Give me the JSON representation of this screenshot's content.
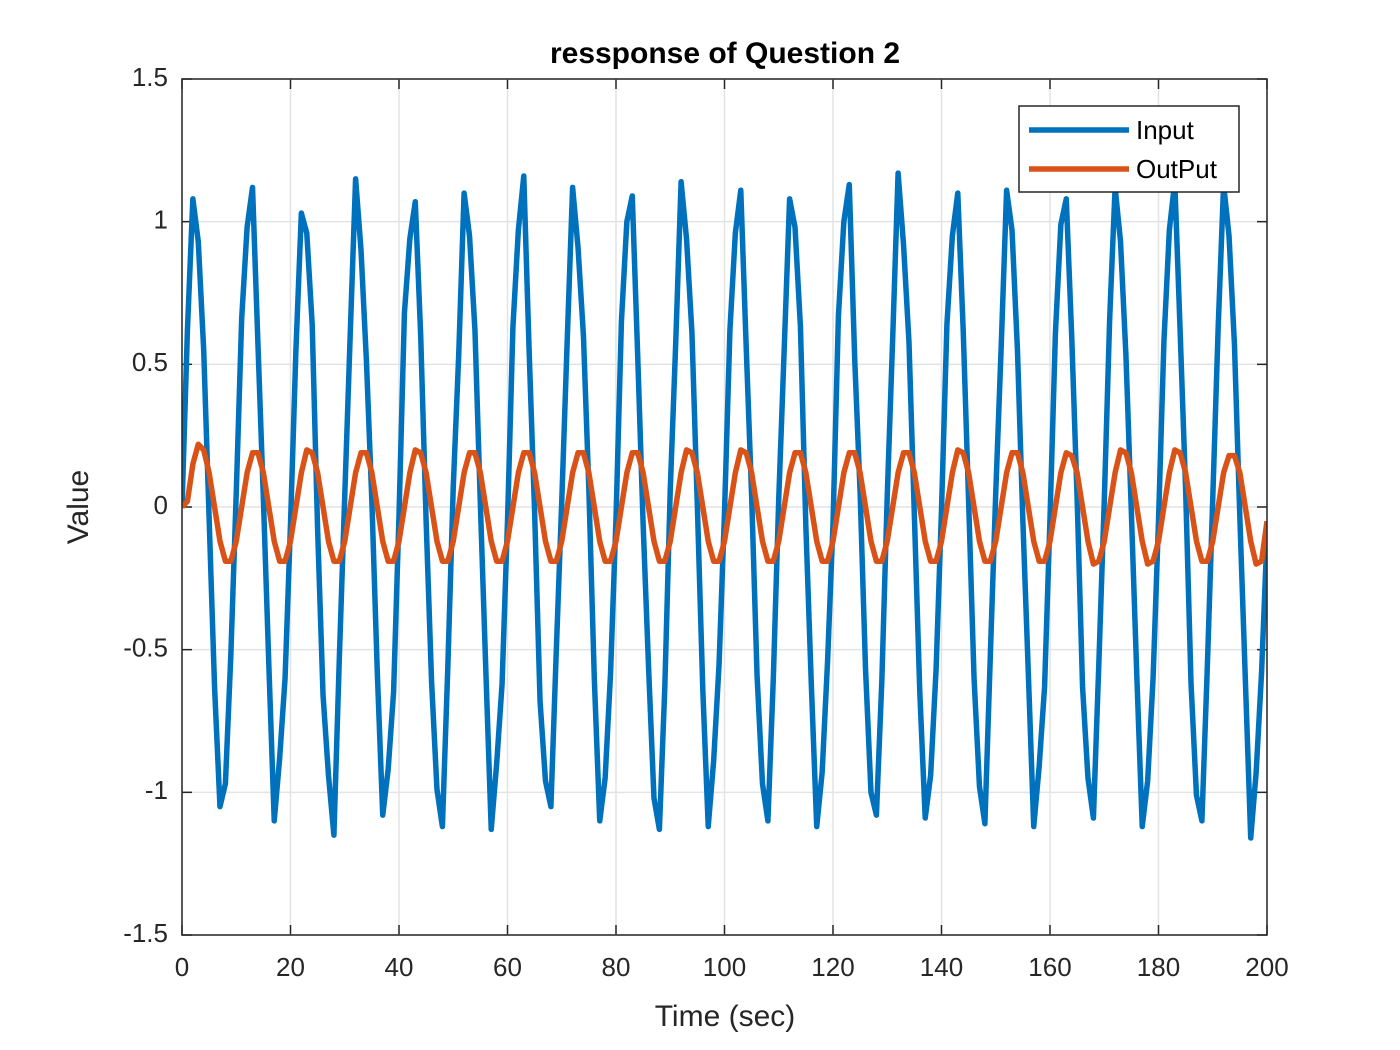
{
  "chart_data": {
    "type": "line",
    "title": "ressponse of Question 2",
    "xlabel": "Time (sec)",
    "ylabel": "Value",
    "xlim": [
      0,
      200
    ],
    "ylim": [
      -1.5,
      1.5
    ],
    "xticks": [
      0,
      20,
      40,
      60,
      80,
      100,
      120,
      140,
      160,
      180,
      200
    ],
    "yticks": [
      -1.5,
      -1,
      -0.5,
      0,
      0.5,
      1,
      1.5
    ],
    "grid": true,
    "legend": "upper-right",
    "x": [
      0,
      1,
      2,
      3,
      4,
      5,
      6,
      7,
      8,
      9,
      10,
      11,
      12,
      13,
      14,
      15,
      16,
      17,
      18,
      19,
      20,
      21,
      22,
      23,
      24,
      25,
      26,
      27,
      28,
      29,
      30,
      31,
      32,
      33,
      34,
      35,
      36,
      37,
      38,
      39,
      40,
      41,
      42,
      43,
      44,
      45,
      46,
      47,
      48,
      49,
      50,
      51,
      52,
      53,
      54,
      55,
      56,
      57,
      58,
      59,
      60,
      61,
      62,
      63,
      64,
      65,
      66,
      67,
      68,
      69,
      70,
      71,
      72,
      73,
      74,
      75,
      76,
      77,
      78,
      79,
      80,
      81,
      82,
      83,
      84,
      85,
      86,
      87,
      88,
      89,
      90,
      91,
      92,
      93,
      94,
      95,
      96,
      97,
      98,
      99,
      100,
      101,
      102,
      103,
      104,
      105,
      106,
      107,
      108,
      109,
      110,
      111,
      112,
      113,
      114,
      115,
      116,
      117,
      118,
      119,
      120,
      121,
      122,
      123,
      124,
      125,
      126,
      127,
      128,
      129,
      130,
      131,
      132,
      133,
      134,
      135,
      136,
      137,
      138,
      139,
      140,
      141,
      142,
      143,
      144,
      145,
      146,
      147,
      148,
      149,
      150,
      151,
      152,
      153,
      154,
      155,
      156,
      157,
      158,
      159,
      160,
      161,
      162,
      163,
      164,
      165,
      166,
      167,
      168,
      169,
      170,
      171,
      172,
      173,
      174,
      175,
      176,
      177,
      178,
      179,
      180,
      181,
      182,
      183,
      184,
      185,
      186,
      187,
      188,
      189,
      190,
      191,
      192,
      193,
      194,
      195,
      196,
      197,
      198,
      199,
      200
    ],
    "series": [
      {
        "name": "Input",
        "color": "#0072BD",
        "values": [
          0,
          0.62,
          1.08,
          0.93,
          0.55,
          -0.04,
          -0.63,
          -1.05,
          -0.97,
          -0.52,
          0.05,
          0.66,
          0.98,
          1.12,
          0.57,
          0.03,
          -0.55,
          -1.1,
          -0.88,
          -0.6,
          -0.06,
          0.55,
          1.03,
          0.96,
          0.64,
          -0.08,
          -0.66,
          -0.94,
          -1.15,
          -0.53,
          0.04,
          0.6,
          1.15,
          0.9,
          0.51,
          0.02,
          -0.58,
          -1.08,
          -0.92,
          -0.65,
          -0.03,
          0.68,
          0.94,
          1.07,
          0.6,
          -0.05,
          -0.61,
          -0.99,
          -1.12,
          -0.56,
          0.07,
          0.53,
          1.1,
          0.95,
          0.62,
          0.01,
          -0.57,
          -1.13,
          -0.9,
          -0.62,
          -0.05,
          0.63,
          0.97,
          1.16,
          0.54,
          -0.02,
          -0.68,
          -0.96,
          -1.05,
          -0.5,
          0.02,
          0.58,
          1.12,
          0.91,
          0.6,
          0.06,
          -0.6,
          -1.1,
          -0.95,
          -0.58,
          -0.04,
          0.65,
          1.0,
          1.09,
          0.53,
          -0.06,
          -0.56,
          -1.02,
          -1.13,
          -0.63,
          0.06,
          0.57,
          1.14,
          0.94,
          0.61,
          0.0,
          -0.64,
          -1.12,
          -0.89,
          -0.55,
          -0.02,
          0.62,
          0.96,
          1.11,
          0.56,
          0.04,
          -0.59,
          -0.97,
          -1.1,
          -0.6,
          0.03,
          0.55,
          1.08,
          0.98,
          0.63,
          -0.07,
          -0.62,
          -1.12,
          -0.93,
          -0.54,
          -0.06,
          0.67,
          1.0,
          1.13,
          0.52,
          0.05,
          -0.57,
          -1.0,
          -1.08,
          -0.61,
          0.04,
          0.59,
          1.17,
          0.92,
          0.58,
          -0.03,
          -0.65,
          -1.09,
          -0.94,
          -0.57,
          -0.01,
          0.64,
          0.95,
          1.1,
          0.62,
          0.02,
          -0.6,
          -0.98,
          -1.11,
          -0.52,
          0.05,
          0.56,
          1.11,
          0.97,
          0.55,
          -0.05,
          -0.58,
          -1.12,
          -0.91,
          -0.63,
          -0.04,
          0.61,
          0.99,
          1.08,
          0.6,
          0.03,
          -0.63,
          -0.95,
          -1.09,
          -0.55,
          0.02,
          0.66,
          1.12,
          0.93,
          0.53,
          -0.02,
          -0.59,
          -1.12,
          -0.96,
          -0.6,
          -0.05,
          0.58,
          0.97,
          1.14,
          0.61,
          0.06,
          -0.62,
          -1.01,
          -1.1,
          -0.56,
          0.03,
          0.63,
          1.13,
          0.95,
          0.57,
          -0.04,
          -0.6,
          -1.16,
          -0.93,
          -0.58,
          -0.1
        ]
      },
      {
        "name": "OutPut",
        "color": "#D95319",
        "values": [
          0,
          0.02,
          0.15,
          0.22,
          0.2,
          0.12,
          0,
          -0.12,
          -0.19,
          -0.19,
          -0.12,
          0,
          0.12,
          0.19,
          0.19,
          0.12,
          0,
          -0.12,
          -0.19,
          -0.19,
          -0.12,
          0,
          0.12,
          0.2,
          0.19,
          0.12,
          0,
          -0.12,
          -0.19,
          -0.19,
          -0.12,
          0,
          0.12,
          0.19,
          0.19,
          0.12,
          0,
          -0.12,
          -0.19,
          -0.19,
          -0.12,
          0,
          0.12,
          0.2,
          0.19,
          0.12,
          0,
          -0.12,
          -0.19,
          -0.19,
          -0.12,
          0,
          0.12,
          0.19,
          0.19,
          0.12,
          0,
          -0.12,
          -0.19,
          -0.19,
          -0.12,
          0,
          0.12,
          0.19,
          0.19,
          0.12,
          0,
          -0.12,
          -0.19,
          -0.19,
          -0.12,
          0,
          0.12,
          0.19,
          0.19,
          0.12,
          0,
          -0.12,
          -0.19,
          -0.19,
          -0.12,
          0,
          0.12,
          0.19,
          0.19,
          0.12,
          0,
          -0.12,
          -0.19,
          -0.19,
          -0.12,
          0,
          0.12,
          0.2,
          0.19,
          0.12,
          0,
          -0.12,
          -0.19,
          -0.19,
          -0.12,
          0,
          0.12,
          0.2,
          0.19,
          0.12,
          0,
          -0.12,
          -0.19,
          -0.19,
          -0.12,
          0,
          0.12,
          0.19,
          0.19,
          0.12,
          0,
          -0.12,
          -0.19,
          -0.19,
          -0.12,
          0,
          0.12,
          0.19,
          0.19,
          0.12,
          0,
          -0.12,
          -0.19,
          -0.19,
          -0.12,
          0,
          0.12,
          0.19,
          0.19,
          0.12,
          0,
          -0.12,
          -0.19,
          -0.19,
          -0.12,
          0,
          0.12,
          0.2,
          0.19,
          0.12,
          0,
          -0.12,
          -0.19,
          -0.19,
          -0.12,
          0,
          0.12,
          0.19,
          0.19,
          0.12,
          0,
          -0.12,
          -0.19,
          -0.19,
          -0.12,
          0,
          0.12,
          0.19,
          0.18,
          0.12,
          0,
          -0.12,
          -0.2,
          -0.19,
          -0.12,
          0,
          0.12,
          0.2,
          0.19,
          0.12,
          0,
          -0.12,
          -0.2,
          -0.19,
          -0.12,
          0,
          0.12,
          0.2,
          0.19,
          0.12,
          0,
          -0.12,
          -0.19,
          -0.19,
          -0.12,
          0,
          0.12,
          0.18,
          0.18,
          0.12,
          0,
          -0.12,
          -0.2,
          -0.19,
          -0.05
        ]
      }
    ]
  }
}
